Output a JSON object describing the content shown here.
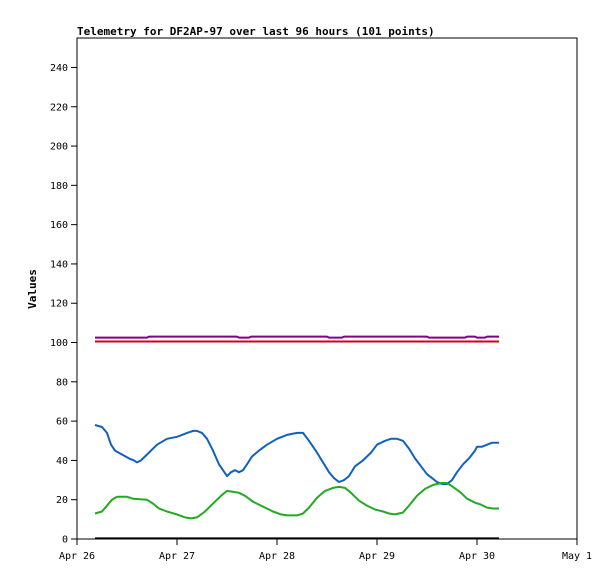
{
  "chart_data": {
    "type": "line",
    "title": "Telemetry for DF2AP-97 over last 96 hours (101 points)",
    "ylabel": "Values",
    "xlabel": "",
    "ylim": [
      0,
      255
    ],
    "xlim": [
      0,
      5
    ],
    "y_ticks": [
      0,
      20,
      40,
      60,
      80,
      100,
      120,
      140,
      160,
      180,
      200,
      220,
      240
    ],
    "x_ticks": [
      {
        "value": 0,
        "label": "Apr 26"
      },
      {
        "value": 1,
        "label": "Apr 27"
      },
      {
        "value": 2,
        "label": "Apr 28"
      },
      {
        "value": 3,
        "label": "Apr 29"
      },
      {
        "value": 4,
        "label": "Apr 30"
      },
      {
        "value": 5,
        "label": "May 1"
      }
    ],
    "grid": false,
    "legend": "none",
    "series": [
      {
        "color": "#800080",
        "points": [
          [
            0.18,
            102.5
          ],
          [
            0.7,
            102.5
          ],
          [
            0.72,
            103
          ],
          [
            1.6,
            103
          ],
          [
            1.62,
            102.5
          ],
          [
            1.72,
            102.5
          ],
          [
            1.74,
            103
          ],
          [
            2.5,
            103
          ],
          [
            2.52,
            102.5
          ],
          [
            2.65,
            102.5
          ],
          [
            2.67,
            103
          ],
          [
            3.5,
            103
          ],
          [
            3.52,
            102.5
          ],
          [
            3.88,
            102.5
          ],
          [
            3.9,
            103
          ],
          [
            3.98,
            103
          ],
          [
            4.0,
            102.5
          ],
          [
            4.08,
            102.5
          ],
          [
            4.1,
            103
          ],
          [
            4.22,
            103
          ]
        ]
      },
      {
        "color": "#cc0022",
        "points": [
          [
            0.18,
            100.5
          ],
          [
            4.22,
            100.5
          ]
        ]
      },
      {
        "color": "#1060c0",
        "points": [
          [
            0.18,
            58
          ],
          [
            0.25,
            57
          ],
          [
            0.3,
            54
          ],
          [
            0.34,
            48
          ],
          [
            0.38,
            45
          ],
          [
            0.45,
            43
          ],
          [
            0.52,
            41
          ],
          [
            0.57,
            40
          ],
          [
            0.6,
            39
          ],
          [
            0.64,
            40
          ],
          [
            0.7,
            43
          ],
          [
            0.8,
            48
          ],
          [
            0.9,
            51
          ],
          [
            1.0,
            52
          ],
          [
            1.05,
            53
          ],
          [
            1.1,
            54
          ],
          [
            1.16,
            55
          ],
          [
            1.2,
            55
          ],
          [
            1.25,
            54
          ],
          [
            1.3,
            51
          ],
          [
            1.36,
            45
          ],
          [
            1.42,
            38
          ],
          [
            1.46,
            35
          ],
          [
            1.5,
            32
          ],
          [
            1.54,
            34
          ],
          [
            1.58,
            35
          ],
          [
            1.62,
            34
          ],
          [
            1.66,
            35
          ],
          [
            1.7,
            38
          ],
          [
            1.75,
            42
          ],
          [
            1.82,
            45
          ],
          [
            1.9,
            48
          ],
          [
            2.0,
            51
          ],
          [
            2.1,
            53
          ],
          [
            2.2,
            54
          ],
          [
            2.26,
            54
          ],
          [
            2.32,
            50
          ],
          [
            2.4,
            44
          ],
          [
            2.46,
            39
          ],
          [
            2.52,
            34
          ],
          [
            2.57,
            31
          ],
          [
            2.62,
            29
          ],
          [
            2.67,
            30
          ],
          [
            2.72,
            32
          ],
          [
            2.78,
            37
          ],
          [
            2.86,
            40
          ],
          [
            2.94,
            44
          ],
          [
            3.0,
            48
          ],
          [
            3.08,
            50
          ],
          [
            3.14,
            51
          ],
          [
            3.2,
            51
          ],
          [
            3.26,
            50
          ],
          [
            3.32,
            46
          ],
          [
            3.38,
            41
          ],
          [
            3.44,
            37
          ],
          [
            3.5,
            33
          ],
          [
            3.55,
            31
          ],
          [
            3.6,
            29
          ],
          [
            3.65,
            28
          ],
          [
            3.7,
            28
          ],
          [
            3.75,
            30
          ],
          [
            3.8,
            34
          ],
          [
            3.86,
            38
          ],
          [
            3.92,
            41
          ],
          [
            3.98,
            45
          ],
          [
            4.0,
            47
          ],
          [
            4.05,
            47
          ],
          [
            4.1,
            48
          ],
          [
            4.15,
            49
          ],
          [
            4.22,
            49
          ]
        ]
      },
      {
        "color": "#22aa22",
        "points": [
          [
            0.18,
            13
          ],
          [
            0.25,
            14
          ],
          [
            0.3,
            17
          ],
          [
            0.35,
            20
          ],
          [
            0.4,
            21.5
          ],
          [
            0.5,
            21.5
          ],
          [
            0.56,
            20.5
          ],
          [
            0.7,
            20
          ],
          [
            0.76,
            18
          ],
          [
            0.82,
            15.5
          ],
          [
            0.9,
            14
          ],
          [
            1.0,
            12.5
          ],
          [
            1.08,
            11
          ],
          [
            1.14,
            10.5
          ],
          [
            1.2,
            11
          ],
          [
            1.28,
            14
          ],
          [
            1.36,
            18
          ],
          [
            1.44,
            22
          ],
          [
            1.5,
            24.5
          ],
          [
            1.56,
            24
          ],
          [
            1.62,
            23.5
          ],
          [
            1.68,
            22
          ],
          [
            1.76,
            19
          ],
          [
            1.86,
            16.5
          ],
          [
            1.96,
            14
          ],
          [
            2.04,
            12.5
          ],
          [
            2.1,
            12
          ],
          [
            2.2,
            12
          ],
          [
            2.26,
            13
          ],
          [
            2.32,
            16
          ],
          [
            2.4,
            21
          ],
          [
            2.48,
            24.5
          ],
          [
            2.56,
            26
          ],
          [
            2.62,
            26.5
          ],
          [
            2.68,
            26
          ],
          [
            2.74,
            23.5
          ],
          [
            2.82,
            19.5
          ],
          [
            2.9,
            17
          ],
          [
            2.98,
            15
          ],
          [
            3.06,
            14
          ],
          [
            3.12,
            13
          ],
          [
            3.18,
            12.5
          ],
          [
            3.26,
            13.5
          ],
          [
            3.32,
            17
          ],
          [
            3.4,
            22
          ],
          [
            3.48,
            25.5
          ],
          [
            3.56,
            27.5
          ],
          [
            3.64,
            28.5
          ],
          [
            3.7,
            28.5
          ],
          [
            3.76,
            26.5
          ],
          [
            3.84,
            23.5
          ],
          [
            3.9,
            20.5
          ],
          [
            3.98,
            18.5
          ],
          [
            4.04,
            17.5
          ],
          [
            4.1,
            16
          ],
          [
            4.16,
            15.5
          ],
          [
            4.22,
            15.5
          ]
        ]
      },
      {
        "color": "#000000",
        "points": [
          [
            0.18,
            0.3
          ],
          [
            4.22,
            0.3
          ]
        ]
      }
    ]
  }
}
